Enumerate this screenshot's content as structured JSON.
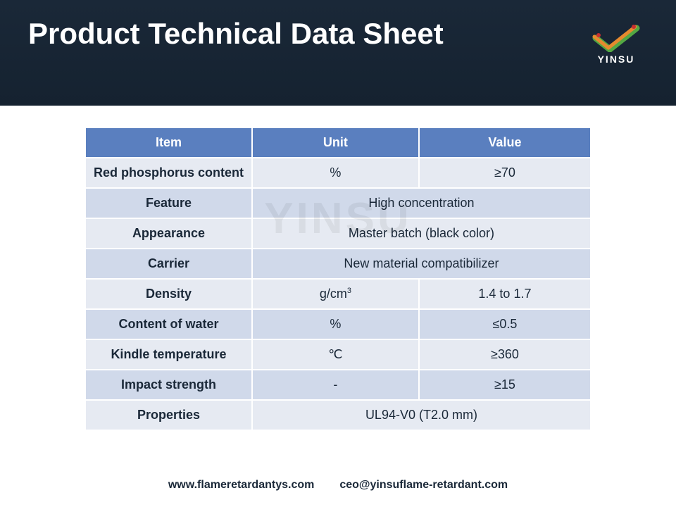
{
  "header": {
    "title": "Product Technical Data Sheet",
    "watermark": "YINSU",
    "logo_text": "YINSU"
  },
  "table": {
    "columns": [
      "Item",
      "Unit",
      "Value"
    ],
    "header_bg": "#5a7fbf",
    "header_fg": "#ffffff",
    "row_bg_a": "#e6eaf2",
    "row_bg_b": "#d0d9ea",
    "text_color": "#1a2838",
    "border_color": "#ffffff",
    "font_size": 18,
    "rows": [
      {
        "item": "Red phosphorus content",
        "unit": "%",
        "value": "≥70",
        "span": false
      },
      {
        "item": "Feature",
        "unit": "",
        "value": "High concentration",
        "span": true
      },
      {
        "item": "Appearance",
        "unit": "",
        "value": "Master batch (black color)",
        "span": true
      },
      {
        "item": "Carrier",
        "unit": "",
        "value": "New material compatibilizer",
        "span": true
      },
      {
        "item": "Density",
        "unit": "g/cm",
        "unit_sup": "3",
        "value": "1.4 to 1.7",
        "span": false
      },
      {
        "item": "Content of water",
        "unit": "%",
        "value": "≤0.5",
        "span": false
      },
      {
        "item": "Kindle temperature",
        "unit": "℃",
        "value": "≥360",
        "span": false
      },
      {
        "item": "Impact strength",
        "unit": "-",
        "value": "≥15",
        "span": false
      },
      {
        "item": "Properties",
        "unit": "",
        "value": "UL94-V0 (T2.0 mm)",
        "span": true
      }
    ]
  },
  "footer": {
    "website": "www.flameretardantys.com",
    "email": "ceo@yinsuflame-retardant.com"
  },
  "colors": {
    "header_bg": "#152230",
    "page_bg": "#ffffff",
    "logo_green": "#53a843",
    "logo_orange": "#e68a2e",
    "logo_red": "#c73030"
  }
}
